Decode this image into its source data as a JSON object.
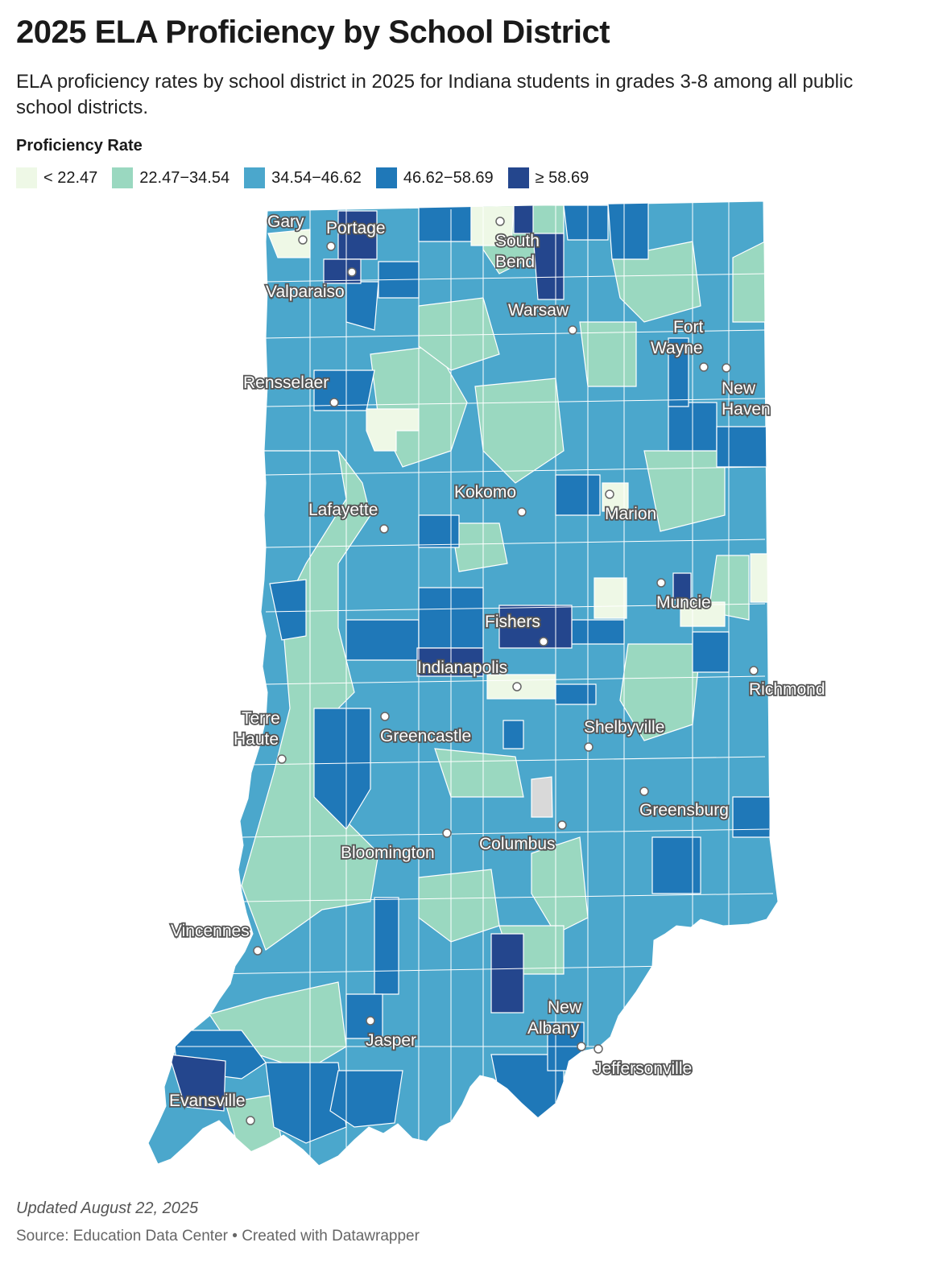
{
  "title": "2025 ELA Proficiency by School District",
  "subtitle": "ELA proficiency rates by school district in 2025 for Indiana students in grades 3-8 among all public school districts.",
  "legend": {
    "title": "Proficiency Rate",
    "bins": [
      {
        "label": "< 22.47",
        "color": "#eef8e6"
      },
      {
        "label": "22.47−34.54",
        "color": "#9ad8c0"
      },
      {
        "label": "34.54−46.62",
        "color": "#4ba7cc"
      },
      {
        "label": "46.62−58.69",
        "color": "#1f78b8"
      },
      {
        "label": "≥ 58.69",
        "color": "#24468d"
      }
    ],
    "no_data_color": "#d9d9d9"
  },
  "cities": [
    {
      "name": "Gary"
    },
    {
      "name": "Portage"
    },
    {
      "name": "South Bend"
    },
    {
      "name": "Valparaiso"
    },
    {
      "name": "Warsaw"
    },
    {
      "name": "Fort Wayne"
    },
    {
      "name": "New Haven"
    },
    {
      "name": "Rensselaer"
    },
    {
      "name": "Kokomo"
    },
    {
      "name": "Lafayette"
    },
    {
      "name": "Marion"
    },
    {
      "name": "Muncie"
    },
    {
      "name": "Fishers"
    },
    {
      "name": "Indianapolis"
    },
    {
      "name": "Richmond"
    },
    {
      "name": "Terre Haute"
    },
    {
      "name": "Greencastle"
    },
    {
      "name": "Shelbyville"
    },
    {
      "name": "Greensburg"
    },
    {
      "name": "Bloomington"
    },
    {
      "name": "Columbus"
    },
    {
      "name": "Vincennes"
    },
    {
      "name": "New Albany"
    },
    {
      "name": "Jasper"
    },
    {
      "name": "Jeffersonville"
    },
    {
      "name": "Evansville"
    }
  ],
  "footer": {
    "updated": "Updated August 22, 2025",
    "source": "Source: Education Data Center • Created with Datawrapper"
  }
}
